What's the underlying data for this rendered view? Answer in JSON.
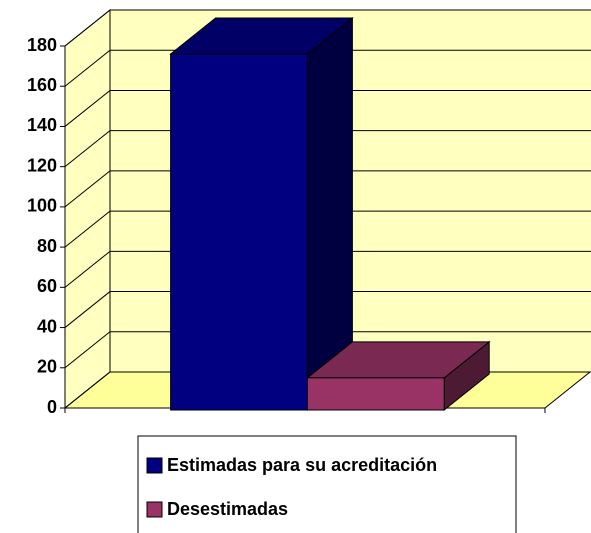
{
  "chart_data": {
    "type": "bar3d",
    "categories": [
      null
    ],
    "series": [
      {
        "name": "Estimadas para su acreditación",
        "color": "#000080",
        "values": [
          176
        ]
      },
      {
        "name": "Desestimadas",
        "color": "#993366",
        "values": [
          15
        ]
      }
    ],
    "ylim": [
      0,
      180
    ],
    "yticks": [
      0,
      20,
      40,
      60,
      80,
      100,
      120,
      140,
      160,
      180
    ],
    "grid": true,
    "legend": "bottom"
  }
}
